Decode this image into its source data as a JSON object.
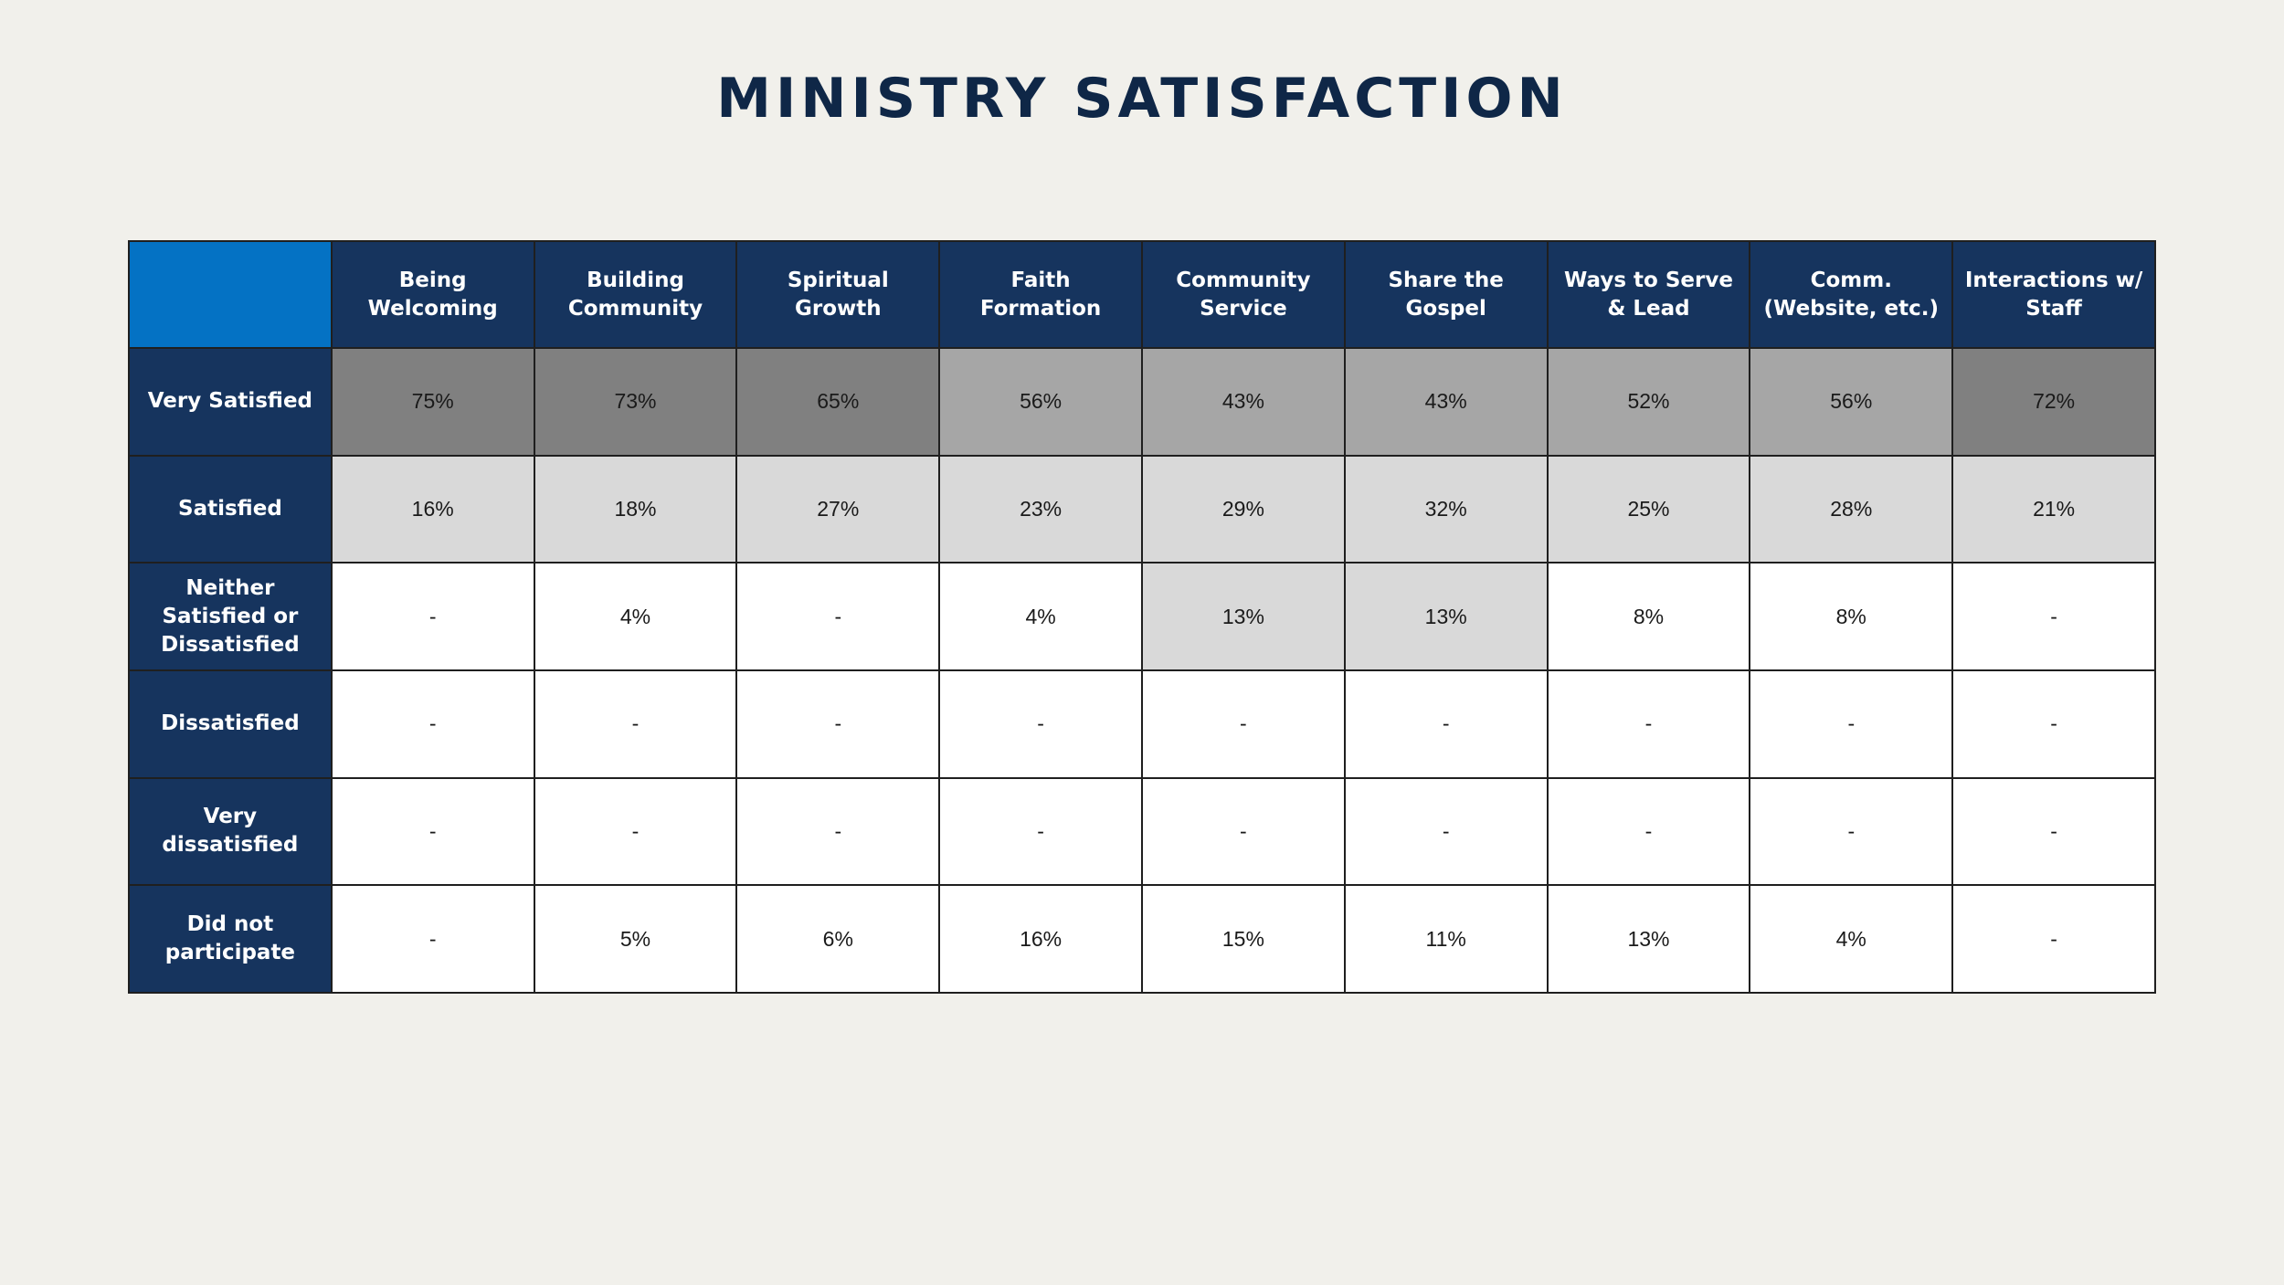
{
  "title": "MINISTRY SATISFACTION",
  "colors": {
    "background": "#f1f0eb",
    "header_navy": "#16345e",
    "corner_blue": "#0472c4",
    "shade_dark": "#808080",
    "shade_mid": "#a6a6a6",
    "shade_light": "#d9d9d9",
    "shade_none": "#ffffff"
  },
  "chart_data": {
    "type": "table",
    "title": "MINISTRY SATISFACTION",
    "columns": [
      "Being Welcoming",
      "Building Community",
      "Spiritual Growth",
      "Faith Formation",
      "Community Service",
      "Share the Gospel",
      "Ways to Serve & Lead",
      "Comm. (Website, etc.)",
      "Interactions w/ Staff"
    ],
    "rows": [
      {
        "label": "Very Satisfied",
        "values": [
          "75%",
          "73%",
          "65%",
          "56%",
          "43%",
          "43%",
          "52%",
          "56%",
          "72%"
        ],
        "shade": [
          "dark",
          "dark",
          "dark",
          "mid",
          "mid",
          "mid",
          "mid",
          "mid",
          "dark"
        ]
      },
      {
        "label": "Satisfied",
        "values": [
          "16%",
          "18%",
          "27%",
          "23%",
          "29%",
          "32%",
          "25%",
          "28%",
          "21%"
        ],
        "shade": [
          "light",
          "light",
          "light",
          "light",
          "light",
          "light",
          "light",
          "light",
          "light"
        ]
      },
      {
        "label": "Neither Satisfied or Dissatisfied",
        "values": [
          "-",
          "4%",
          "-",
          "4%",
          "13%",
          "13%",
          "8%",
          "8%",
          "-"
        ],
        "shade": [
          "none",
          "none",
          "none",
          "none",
          "light",
          "light",
          "none",
          "none",
          "none"
        ]
      },
      {
        "label": "Dissatisfied",
        "values": [
          "-",
          "-",
          "-",
          "-",
          "-",
          "-",
          "-",
          "-",
          "-"
        ],
        "shade": [
          "none",
          "none",
          "none",
          "none",
          "none",
          "none",
          "none",
          "none",
          "none"
        ]
      },
      {
        "label": "Very dissatisfied",
        "values": [
          "-",
          "-",
          "-",
          "-",
          "-",
          "-",
          "-",
          "-",
          "-"
        ],
        "shade": [
          "none",
          "none",
          "none",
          "none",
          "none",
          "none",
          "none",
          "none",
          "none"
        ]
      },
      {
        "label": "Did not participate",
        "values": [
          "-",
          "5%",
          "6%",
          "16%",
          "15%",
          "11%",
          "13%",
          "4%",
          "-"
        ],
        "shade": [
          "none",
          "none",
          "none",
          "none",
          "none",
          "none",
          "none",
          "none",
          "none"
        ]
      }
    ]
  }
}
